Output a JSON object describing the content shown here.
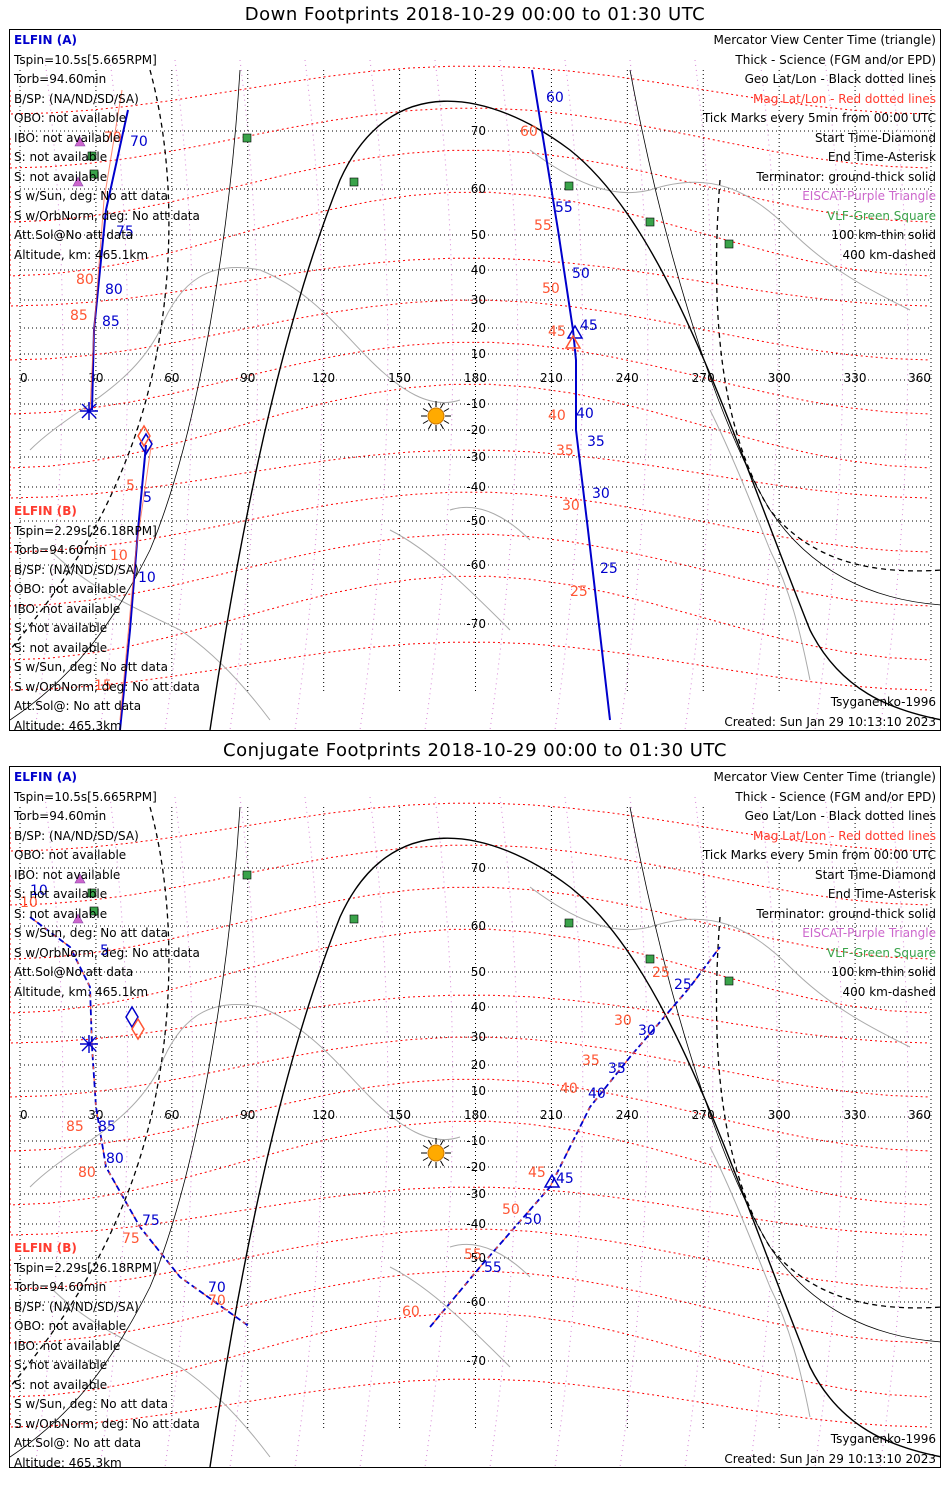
{
  "colors": {
    "elfin_a": "#0000cc",
    "elfin_b": "#ff5533",
    "mag_grid": "#ff0000",
    "eiscat": "#cc66cc",
    "vlf": "#3aa34a",
    "sun": "#ffaa00"
  },
  "common": {
    "lat_ticks": [
      "70",
      "60",
      "50",
      "40",
      "30",
      "20",
      "10",
      "-10",
      "-20",
      "-30",
      "-40",
      "-50",
      "-60",
      "-70"
    ],
    "lon_ticks": [
      "0",
      "30",
      "60",
      "90",
      "120",
      "150",
      "180",
      "210",
      "240",
      "270",
      "300",
      "330",
      "360"
    ],
    "legend": [
      {
        "text": "Mercator View Center Time (triangle)",
        "color": "black"
      },
      {
        "text": "Thick - Science (FGM and/or EPD)",
        "color": "black"
      },
      {
        "text": "Geo Lat/Lon - Black dotted lines",
        "color": "black"
      },
      {
        "text": "Mag Lat/Lon - Red dotted lines",
        "color": "red"
      },
      {
        "text": "Tick Marks every 5min from 00:00 UTC",
        "color": "black"
      },
      {
        "text": "Start Time-Diamond",
        "color": "black"
      },
      {
        "text": "End Time-Asterisk",
        "color": "black"
      },
      {
        "text": "Terminator: ground-thick solid",
        "color": "black"
      },
      {
        "text": "EISCAT-Purple Triangle",
        "color": "purple"
      },
      {
        "text": "VLF-Green Square",
        "color": "green"
      },
      {
        "text": "100 km-thin solid",
        "color": "black"
      },
      {
        "text": "400 km-dashed",
        "color": "black"
      }
    ],
    "elfin_a": {
      "name": "ELFIN (A)",
      "lines": [
        "Tspin=10.5s[5.665RPM]",
        "Torb=94.60min",
        "B/SP: (NA/ND/SD/SA)",
        "OBO: not available",
        "IBO: not available",
        "S: not available",
        "S: not available",
        "S w/Sun, deg: No att data",
        "S w/OrbNorm, deg: No att data",
        "Att.Sol@No att data",
        "Altitude, km: 465.1km"
      ]
    },
    "elfin_b": {
      "name": "ELFIN (B)",
      "lines": [
        "Tspin=2.29s[26.18RPM]",
        "Torb=94.60min",
        "B/SP: (NA/ND/SD/SA)",
        "OBO: not available",
        "IBO: not available",
        "S: not available",
        "S: not available",
        "S w/Sun, deg: No att data",
        "S w/OrbNorm, deg: No att data",
        "Att.Sol@: No att data",
        "Altitude: 465.3km"
      ]
    },
    "model": "Tsyganenko-1996",
    "created": "Created: Sun Jan 29 10:13:10 2023"
  },
  "panels": [
    {
      "title": "Down Footprints 2018-10-29 00:00 to 01:30 UTC",
      "a_track": [
        [
          55.5,
          -10
        ],
        [
          72,
          40
        ],
        [
          80,
          65
        ],
        [
          90,
          75
        ],
        [
          96,
          85
        ],
        [
          101,
          90
        ],
        [
          110,
          100
        ]
      ],
      "a_labels": [
        "70",
        "75",
        "80",
        "85"
      ],
      "a_track2": [
        [
          562,
          -10
        ],
        [
          566,
          80
        ],
        [
          572,
          180
        ],
        [
          580,
          260
        ],
        [
          590,
          350
        ],
        [
          596,
          420
        ],
        [
          605,
          560
        ],
        [
          612,
          700
        ]
      ],
      "a_track2_labels": [
        "60",
        "55",
        "50",
        "45",
        "40",
        "35",
        "30",
        "25"
      ],
      "b_labels": [
        "70",
        "75",
        "80",
        "85",
        "5",
        "10",
        "15",
        "40",
        "35",
        "30",
        "25",
        "60",
        "55",
        "50",
        "45"
      ]
    },
    {
      "title": "Conjugate Footprints 2018-10-29 00:00 to 01:30 UTC",
      "a_labels": [
        "10",
        "5",
        "85",
        "80",
        "75",
        "70",
        "45",
        "50",
        "55",
        "40",
        "35",
        "30",
        "25"
      ],
      "b_labels": [
        "10",
        "85",
        "80",
        "75",
        "70",
        "45",
        "50",
        "55",
        "60",
        "40",
        "35",
        "30",
        "25"
      ]
    }
  ],
  "track_labels_down": {
    "a": [
      "70",
      "75",
      "80",
      "85",
      "5",
      "10",
      "60",
      "55",
      "50",
      "45",
      "40",
      "35",
      "30",
      "25"
    ],
    "b": [
      "70",
      "80",
      "85",
      "5",
      "10",
      "15",
      "60",
      "55",
      "50",
      "45",
      "40",
      "35",
      "30",
      "25"
    ]
  },
  "track_labels_conj": {
    "a": [
      "10",
      "5",
      "85",
      "80",
      "75",
      "70",
      "25",
      "30",
      "35",
      "40",
      "45",
      "50",
      "55"
    ],
    "b": [
      "10",
      "85",
      "80",
      "75",
      "70",
      "25",
      "30",
      "35",
      "40",
      "45",
      "50",
      "55",
      "60"
    ]
  }
}
